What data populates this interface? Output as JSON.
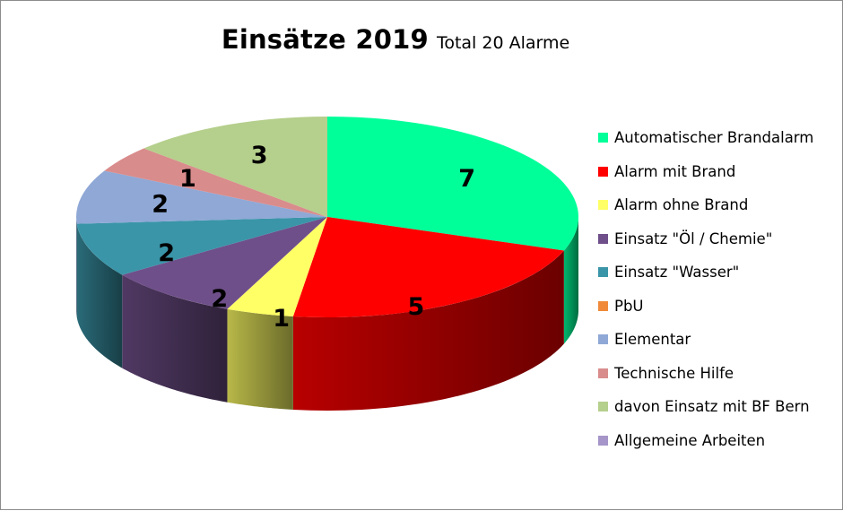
{
  "chart_data": {
    "type": "pie",
    "title": "Einsätze 2019",
    "subtitle": "Total  20 Alarme",
    "legend_position": "right",
    "series": [
      {
        "label": "Automatischer Brandalarm",
        "value": 7,
        "color": "#00ff99"
      },
      {
        "label": "Alarm mit Brand",
        "value": 5,
        "color": "#ff0000"
      },
      {
        "label": "Alarm ohne Brand",
        "value": 1,
        "color": "#ffff66"
      },
      {
        "label": "Einsatz \"Öl / Chemie\"",
        "value": 2,
        "color": "#6f4f8a"
      },
      {
        "label": "Einsatz \"Wasser\"",
        "value": 2,
        "color": "#3a95a8"
      },
      {
        "label": "PbU",
        "value": 0,
        "color": "#f08a3a"
      },
      {
        "label": "Elementar",
        "value": 2,
        "color": "#8fa8d6"
      },
      {
        "label": "Technische Hilfe",
        "value": 1,
        "color": "#d98c8c"
      },
      {
        "label": "davon Einsatz mit BF Bern",
        "value": 3,
        "color": "#b5cf8c"
      },
      {
        "label": "Allgemeine Arbeiten",
        "value": 0,
        "color": "#a595c8"
      }
    ]
  }
}
